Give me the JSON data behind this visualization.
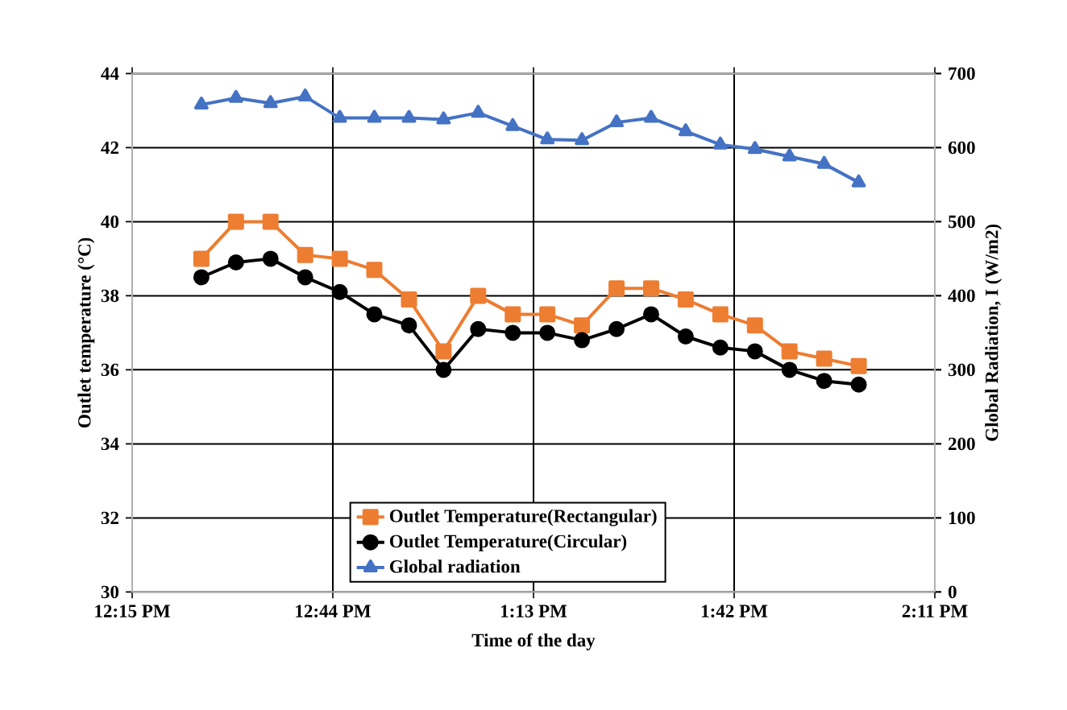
{
  "chart_data": {
    "type": "line",
    "xlabel": "Time of the day",
    "ylabel": "Outlet temperature (°C)",
    "y2label": "Global Radiation, I (W/m2)",
    "x": [
      12.4167,
      12.5,
      12.5833,
      12.6667,
      12.75,
      12.8333,
      12.9167,
      13,
      13.0833,
      13.1667,
      13.25,
      13.3333,
      13.4167,
      13.5,
      13.5833,
      13.6667,
      13.75,
      13.8333,
      13.9167,
      14
    ],
    "series": [
      {
        "name": "Outlet Temperature(Rectangular)",
        "color": "#ed7d31",
        "marker": "square",
        "values": [
          39.0,
          40.0,
          40.0,
          39.1,
          39.0,
          38.7,
          37.9,
          36.5,
          38.0,
          37.5,
          37.5,
          37.2,
          38.2,
          38.2,
          37.9,
          37.5,
          37.2,
          36.5,
          36.3,
          36.1
        ]
      },
      {
        "name": "Outlet Temperature(Circular)",
        "color": "#000000",
        "marker": "circle",
        "values": [
          38.5,
          38.9,
          39.0,
          38.5,
          38.1,
          37.5,
          37.2,
          36.0,
          37.1,
          37.0,
          37.0,
          36.8,
          37.1,
          37.5,
          36.9,
          36.6,
          36.5,
          36.0,
          35.7,
          35.6
        ]
      },
      {
        "name": "Global radiation",
        "color": "#4472c4",
        "marker": "triangle",
        "axis": "y2",
        "values": [
          658,
          667,
          660,
          669,
          640,
          640,
          640,
          638,
          647,
          629,
          611,
          610,
          634,
          640,
          622,
          604,
          598,
          588,
          578,
          553
        ]
      }
    ],
    "xlim": [
      12.25,
      14.1833
    ],
    "xticks": [
      {
        "value": 12.25,
        "label": "12:15 PM"
      },
      {
        "value": 12.7333,
        "label": "12:44 PM"
      },
      {
        "value": 13.2167,
        "label": "1:13 PM"
      },
      {
        "value": 13.7,
        "label": "1:42 PM"
      },
      {
        "value": 14.1833,
        "label": "2:11 PM"
      }
    ],
    "ylim": [
      30,
      44
    ],
    "yticks": [
      30,
      32,
      34,
      36,
      38,
      40,
      42,
      44
    ],
    "y2lim": [
      0,
      700
    ],
    "y2ticks": [
      0,
      100,
      200,
      300,
      400,
      500,
      600,
      700
    ],
    "grid": true,
    "legend": "bottom",
    "line_style": "solid"
  }
}
